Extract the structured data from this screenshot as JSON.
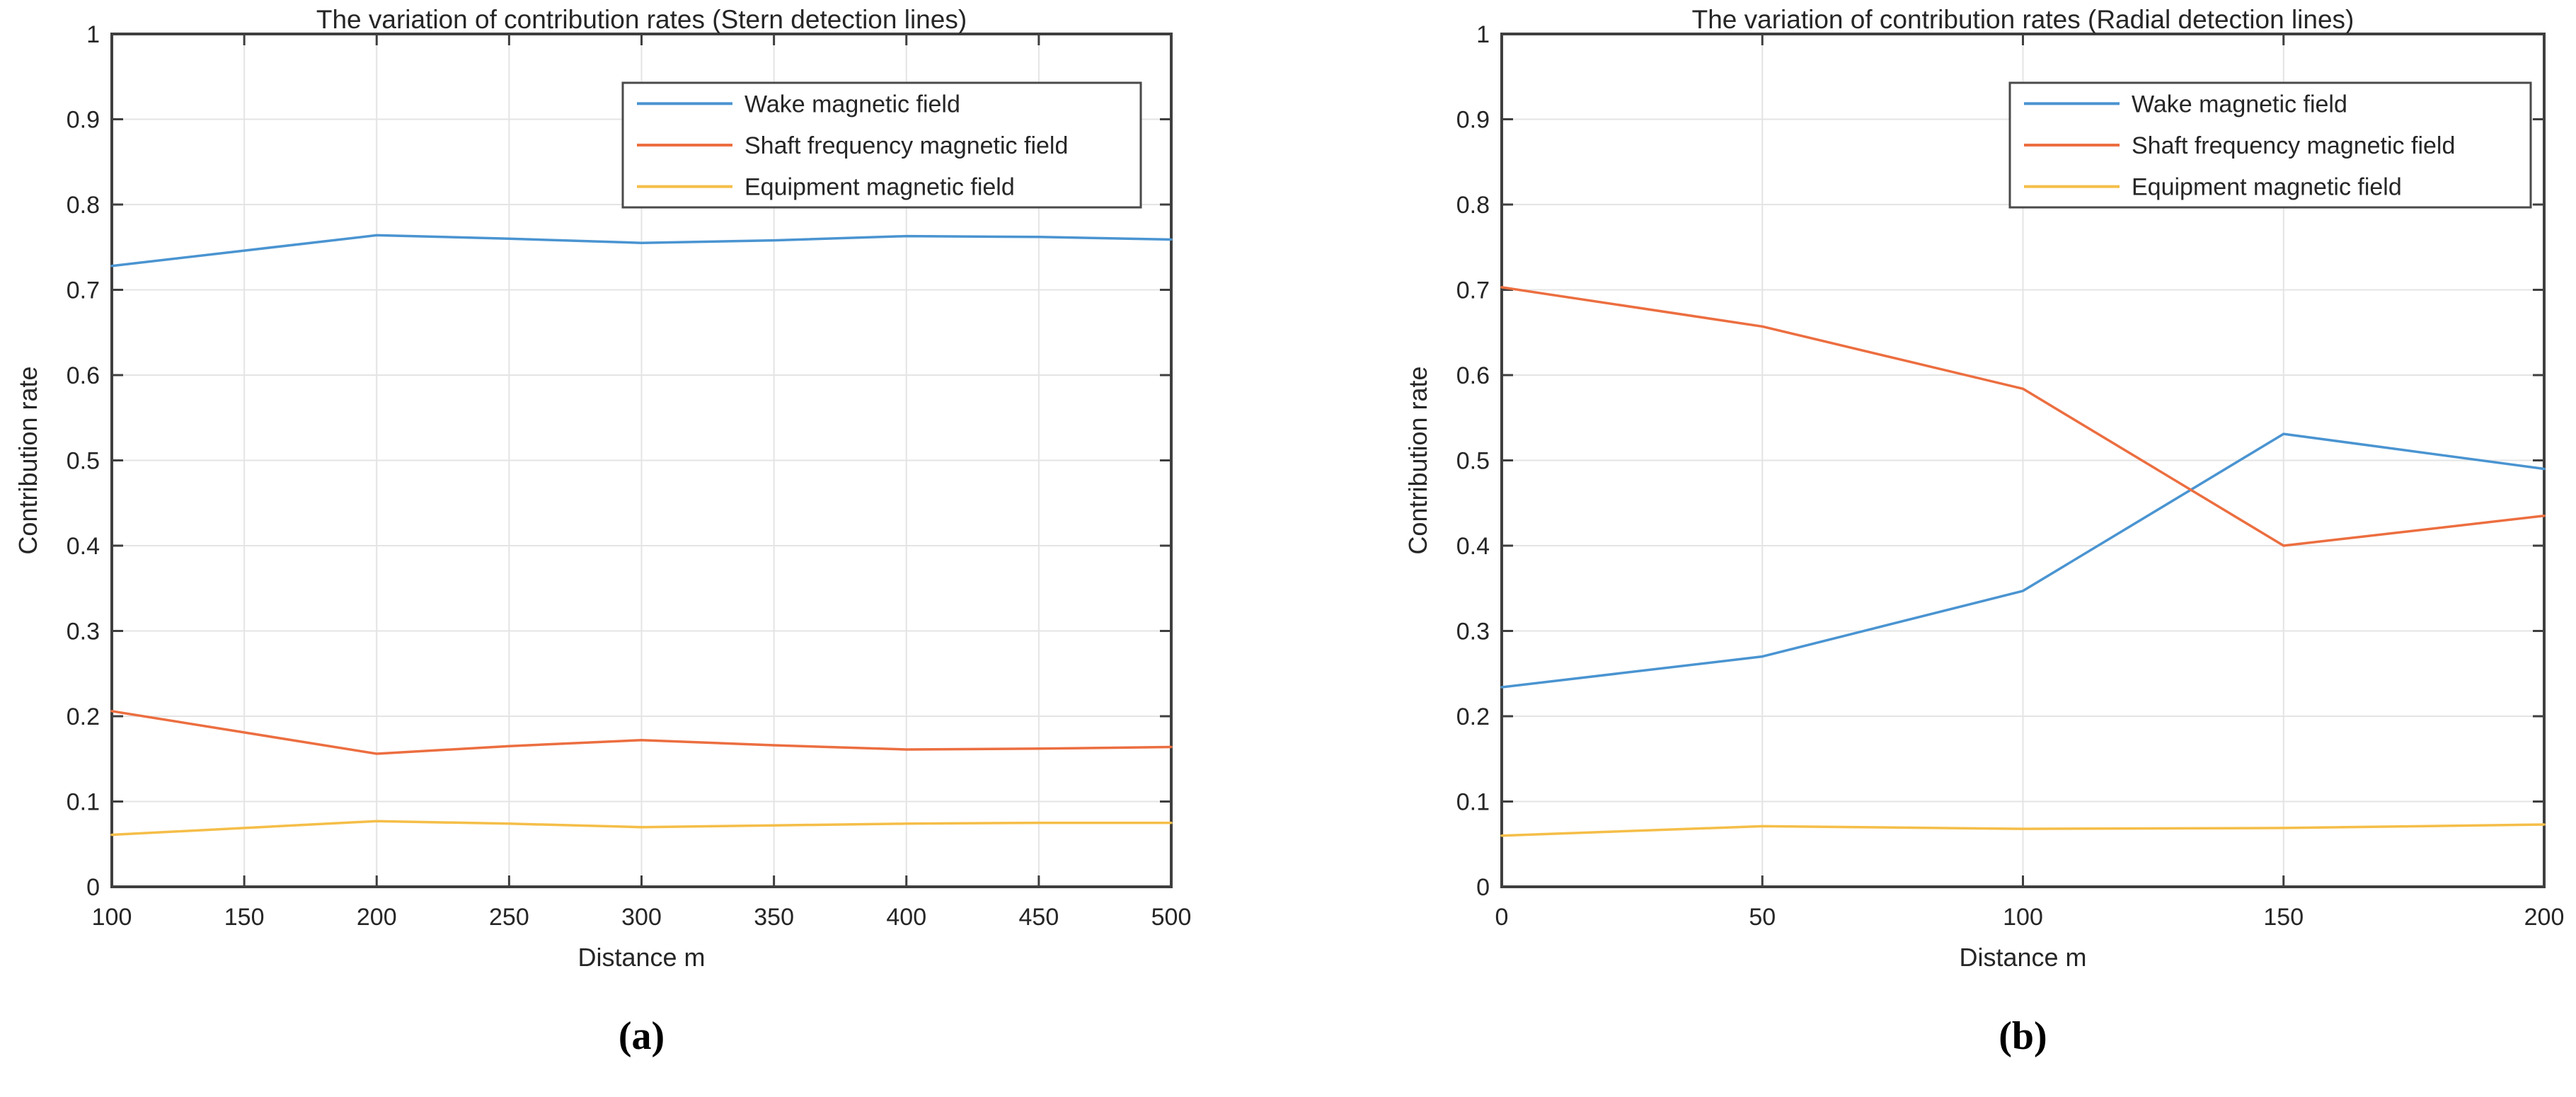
{
  "colors": {
    "wake": "#4A94D1",
    "shaft": "#EC6E40",
    "equipment": "#F5BE48",
    "axis": "#3F3F3F",
    "grid": "#E4E4E4",
    "text": "#262626"
  },
  "chart_data": [
    {
      "type": "line",
      "title": "The variation of contribution rates (Stern detection lines)",
      "xlabel": "Distance m",
      "ylabel": "Contribution rate",
      "caption": "(a)",
      "xlim": [
        100,
        500
      ],
      "ylim": [
        0,
        1
      ],
      "grid": true,
      "legend_position": "upper right inside",
      "xticks": [
        100,
        150,
        200,
        250,
        300,
        350,
        400,
        450,
        500
      ],
      "xtick_labels": [
        "100",
        "150",
        "200",
        "250",
        "300",
        "350",
        "400",
        "450",
        "500"
      ],
      "yticks": [
        0,
        0.1,
        0.2,
        0.3,
        0.4,
        0.5,
        0.6,
        0.7,
        0.8,
        0.9,
        1
      ],
      "ytick_labels": [
        "0",
        "0.1",
        "0.2",
        "0.3",
        "0.4",
        "0.5",
        "0.6",
        "0.7",
        "0.8",
        "0.9",
        "1"
      ],
      "x": [
        100,
        150,
        200,
        250,
        300,
        350,
        400,
        450,
        500
      ],
      "series": [
        {
          "name": "Wake magnetic field",
          "color_key": "wake",
          "values": [
            0.728,
            0.746,
            0.764,
            0.76,
            0.755,
            0.758,
            0.763,
            0.762,
            0.759
          ]
        },
        {
          "name": "Shaft frequency magnetic field",
          "color_key": "shaft",
          "values": [
            0.206,
            0.181,
            0.156,
            0.165,
            0.172,
            0.166,
            0.161,
            0.162,
            0.164
          ]
        },
        {
          "name": "Equipment magnetic field",
          "color_key": "equipment",
          "values": [
            0.061,
            0.069,
            0.077,
            0.074,
            0.07,
            0.072,
            0.074,
            0.075,
            0.075
          ]
        }
      ]
    },
    {
      "type": "line",
      "title": "The variation of contribution rates (Radial detection lines)",
      "xlabel": "Distance m",
      "ylabel": "Contribution rate",
      "caption": "(b)",
      "xlim": [
        0,
        200
      ],
      "ylim": [
        0,
        1
      ],
      "grid": true,
      "legend_position": "upper right inside",
      "xticks": [
        0,
        50,
        100,
        150,
        200
      ],
      "xtick_labels": [
        "0",
        "50",
        "100",
        "150",
        "200"
      ],
      "yticks": [
        0,
        0.1,
        0.2,
        0.3,
        0.4,
        0.5,
        0.6,
        0.7,
        0.8,
        0.9,
        1
      ],
      "ytick_labels": [
        "0",
        "0.1",
        "0.2",
        "0.3",
        "0.4",
        "0.5",
        "0.6",
        "0.7",
        "0.8",
        "0.9",
        "1"
      ],
      "x": [
        0,
        50,
        100,
        150,
        200
      ],
      "series": [
        {
          "name": "Wake magnetic field",
          "color_key": "wake",
          "values": [
            0.234,
            0.27,
            0.347,
            0.531,
            0.49
          ]
        },
        {
          "name": "Shaft frequency magnetic field",
          "color_key": "shaft",
          "values": [
            0.703,
            0.657,
            0.584,
            0.4,
            0.435
          ]
        },
        {
          "name": "Equipment magnetic field",
          "color_key": "equipment",
          "values": [
            0.06,
            0.071,
            0.068,
            0.069,
            0.073
          ]
        }
      ]
    }
  ]
}
